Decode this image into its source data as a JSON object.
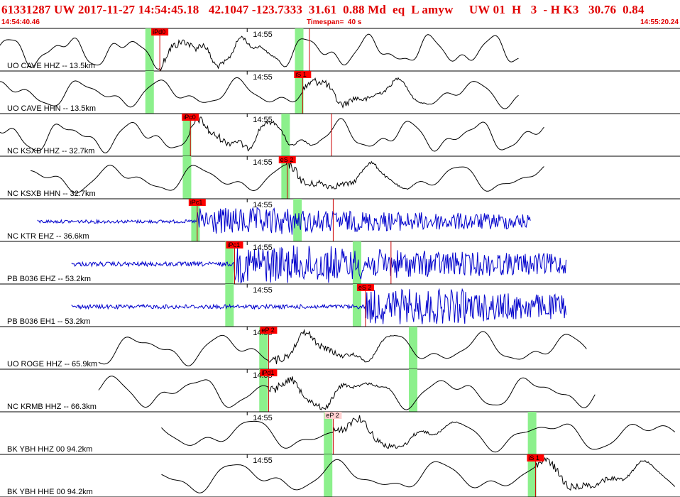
{
  "header": {
    "title": "61331287 UW 2017-11-27 14:54:45.18   42.1047 -123.7333  31.61  0.88 Md  eq  L amyw     UW 01  H   3  - H K3   30.76  0.84",
    "start_time": "14:54:40.46",
    "timespan": "Timespan=  40 s",
    "end_time": "14:55:20.24"
  },
  "colors": {
    "header_text": "#e00000",
    "trace_short_period": "#0000cc",
    "trace_broadband": "#000000",
    "pick_flag": "#ff0000",
    "pick_flag_light": "#ffd0d0",
    "pick_line": "#cc0000",
    "highlight_band": "#8cf08c",
    "separator": "#000000"
  },
  "chart_data": {
    "type": "seismogram",
    "x_range_s": [
      0,
      40
    ],
    "minute_tick_label": "14:55",
    "traces": [
      {
        "label": "UO CAVE HHZ -- 13.5km",
        "color": "black",
        "start": 0,
        "end": 30.5,
        "amp": 1.0,
        "freq": 0.28,
        "bands": [
          8.8,
          17.6
        ],
        "picks": [
          {
            "text": "iPd0",
            "t": 9.4
          },
          {
            "text": "",
            "t": 18.2
          }
        ]
      },
      {
        "label": "UO CAVE HHN -- 13.5km",
        "color": "black",
        "start": 0,
        "end": 30.5,
        "amp": 0.9,
        "freq": 0.22,
        "bands": [
          8.8,
          17.6
        ],
        "picks": [
          {
            "text": "iS 1",
            "t": 17.8
          }
        ]
      },
      {
        "label": "NC KSXB HHZ -- 32.7km",
        "color": "black",
        "start": 0,
        "end": 32,
        "amp": 1.0,
        "freq": 0.25,
        "bands": [
          11.0,
          16.8
        ],
        "picks": [
          {
            "text": "iPc0",
            "t": 11.2
          },
          {
            "text": "",
            "t": 19.5
          }
        ]
      },
      {
        "label": "NC KSXB HHN -- 32.7km",
        "color": "black",
        "start": 1.8,
        "end": 32,
        "amp": 0.9,
        "freq": 0.2,
        "bands": [
          11.0,
          16.8
        ],
        "picks": [
          {
            "text": "eS 2",
            "t": 16.9
          }
        ]
      },
      {
        "label": "NC KTR EHZ -- 36.6km",
        "color": "blue",
        "start": 2.2,
        "end": 31.2,
        "amp": 0.55,
        "freq": 3.0,
        "bands": [
          11.5,
          17.5
        ],
        "picks": [
          {
            "text": "iPc1",
            "t": 11.6
          },
          {
            "text": "",
            "t": 19.6
          }
        ]
      },
      {
        "label": "PB B036 EHZ -- 53.2km",
        "color": "blue",
        "start": 4.2,
        "end": 33.3,
        "amp": 0.75,
        "freq": 3.0,
        "bands": [
          13.5,
          21.0
        ],
        "picks": [
          {
            "text": "iPc1",
            "t": 13.8
          },
          {
            "text": "",
            "t": 23.0
          }
        ]
      },
      {
        "label": "PB B036 EH1 -- 53.2km",
        "color": "blue",
        "start": 4.2,
        "end": 33.3,
        "amp": 0.7,
        "freq": 3.0,
        "bands": [
          13.5,
          21.0
        ],
        "picks": [
          {
            "text": "eS 2",
            "t": 21.5
          }
        ]
      },
      {
        "label": "UO ROGE HHZ -- 65.9km",
        "color": "black",
        "start": 5.8,
        "end": 34.5,
        "amp": 1.0,
        "freq": 0.2,
        "bands": [
          15.5,
          24.3
        ],
        "picks": [
          {
            "text": "eP 2",
            "t": 15.8
          }
        ]
      },
      {
        "label": "NC KRMB HHZ -- 66.3km",
        "color": "black",
        "start": 5.8,
        "end": 35.0,
        "amp": 1.0,
        "freq": 0.2,
        "bands": [
          15.5,
          24.3
        ],
        "picks": [
          {
            "text": "iPd1",
            "t": 15.8
          }
        ]
      },
      {
        "label": "BK YBH HHZ 00 94.2km",
        "color": "black",
        "start": 9.5,
        "end": 39.7,
        "amp": 1.0,
        "freq": 0.17,
        "bands": [
          19.3,
          31.3
        ],
        "picks": [
          {
            "text": "eP 2",
            "t": 19.6
          }
        ]
      },
      {
        "label": "BK YBH HHE 00 94.2km",
        "color": "black",
        "start": 9.5,
        "end": 39.7,
        "amp": 1.0,
        "freq": 0.17,
        "bands": [
          19.3,
          31.3
        ],
        "picks": [
          {
            "text": "iS 1",
            "t": 31.5
          }
        ]
      }
    ]
  }
}
